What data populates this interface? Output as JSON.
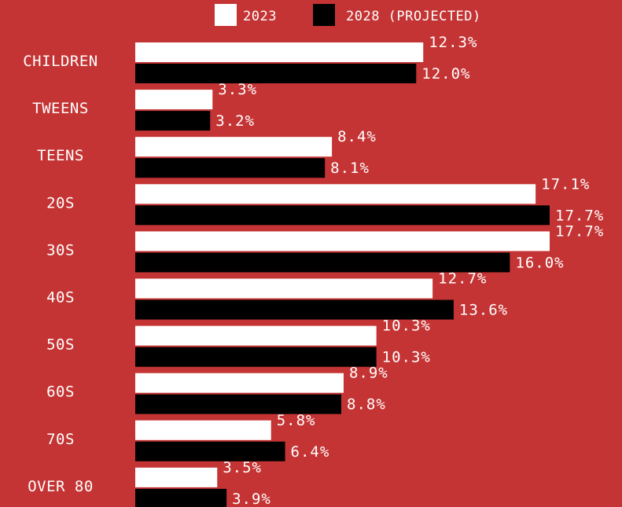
{
  "chart_data": {
    "type": "bar",
    "orientation": "horizontal",
    "title": "",
    "xlabel": "",
    "ylabel": "",
    "grid": false,
    "legend_position": "top",
    "categories": [
      "CHILDREN",
      "TWEENS",
      "TEENS",
      "20S",
      "30S",
      "40S",
      "50S",
      "60S",
      "70S",
      "OVER 80"
    ],
    "series": [
      {
        "name": "2023",
        "color": "#ffffff",
        "values": [
          12.3,
          3.3,
          8.4,
          17.1,
          17.7,
          12.7,
          10.3,
          8.9,
          5.8,
          3.5
        ],
        "labels": [
          "12.3%",
          "3.3%",
          "8.4%",
          "17.1%",
          "17.7%",
          "12.7%",
          "10.3%",
          "8.9%",
          "5.8%",
          "3.5%"
        ]
      },
      {
        "name": "2028 (PROJECTED)",
        "color": "#000000",
        "values": [
          12.0,
          3.2,
          8.1,
          17.7,
          16.0,
          13.6,
          10.3,
          8.8,
          6.4,
          3.9
        ],
        "labels": [
          "12.0%",
          "3.2%",
          "8.1%",
          "17.7%",
          "16.0%",
          "13.6%",
          "10.3%",
          "8.8%",
          "6.4%",
          "3.9%"
        ]
      }
    ],
    "xlim": [
      0,
      17.7
    ]
  },
  "colors": {
    "background": "#c53434",
    "text": "#ffffff"
  }
}
